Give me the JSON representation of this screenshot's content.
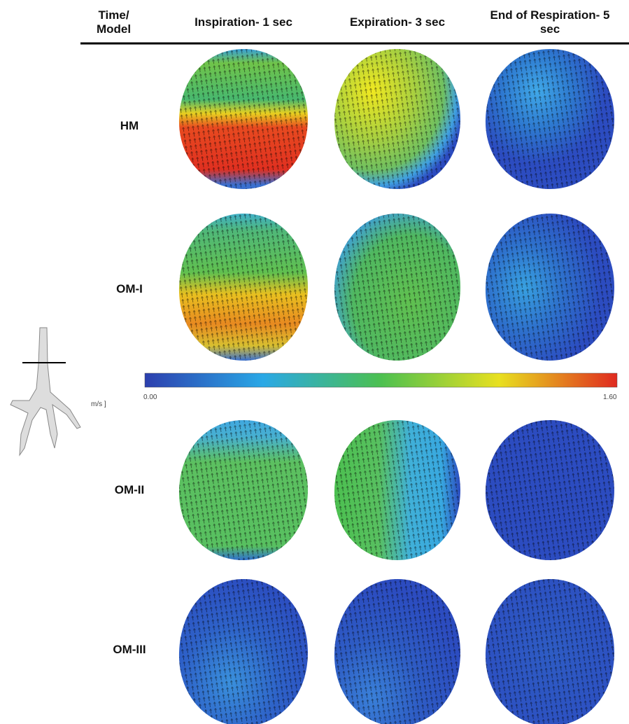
{
  "header": {
    "row_header": "Time/ Model",
    "columns": [
      "Inspiration- 1 sec",
      "Expiration- 3 sec",
      "End of Respiration- 5 sec"
    ]
  },
  "rows": [
    "HM",
    "OM-I",
    "OM-II",
    "OM-III"
  ],
  "colorbar": {
    "unit": "m/s ]",
    "min": "0.00",
    "max": "1.60"
  }
}
